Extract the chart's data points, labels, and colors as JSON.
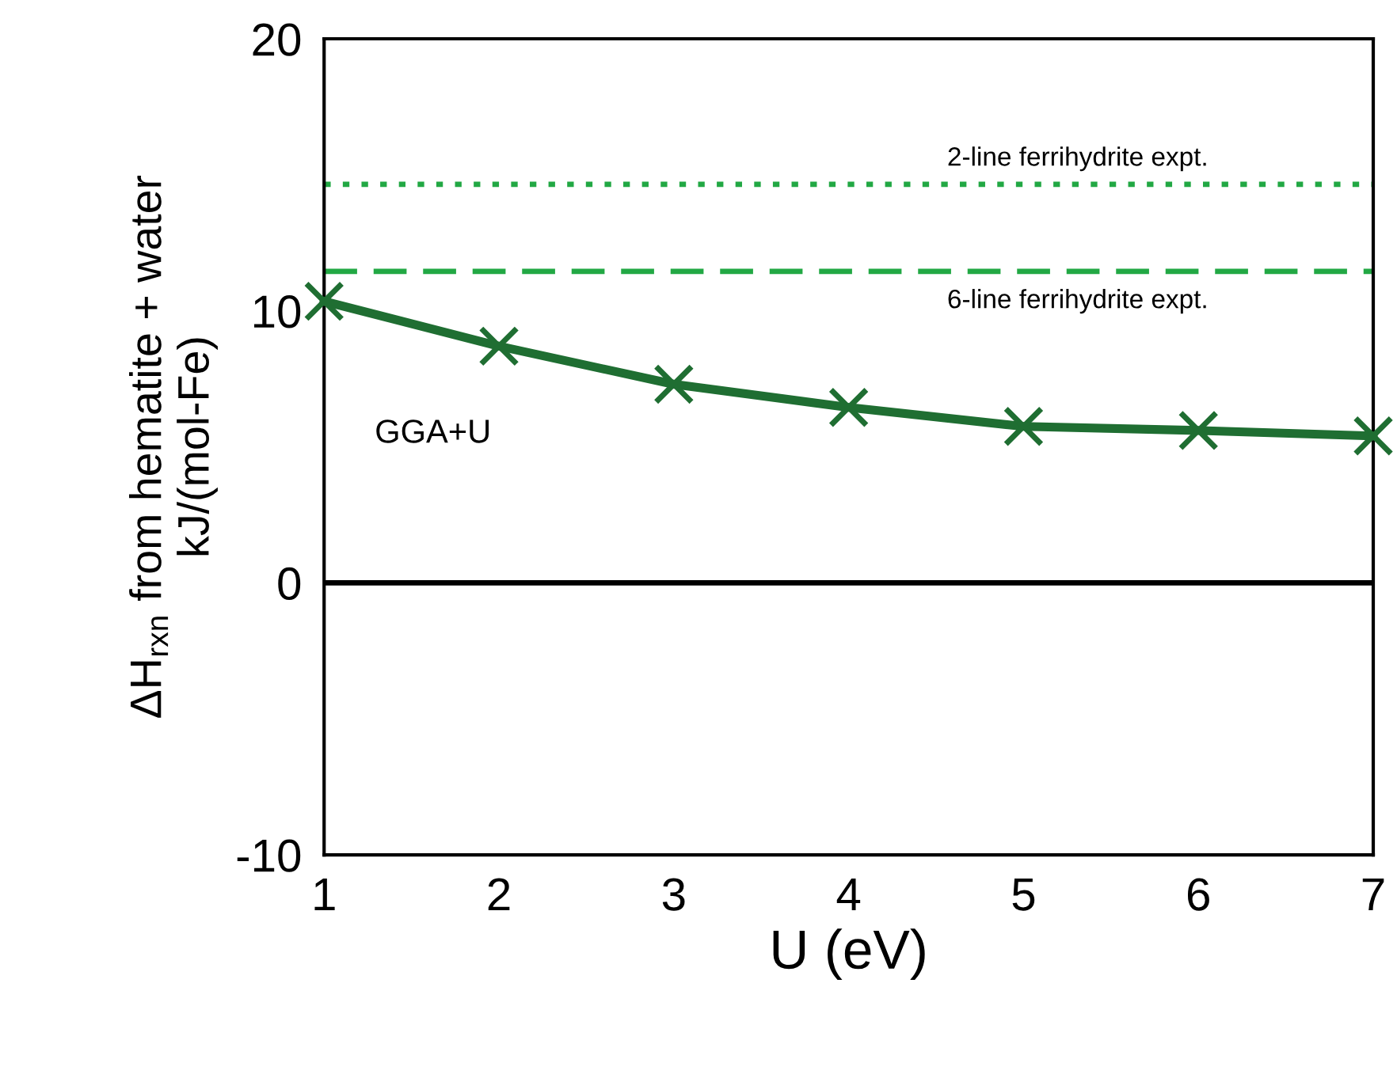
{
  "chart_data": {
    "type": "line",
    "xlabel": "U (eV)",
    "ylabel": "ΔH$_{rxn}$ from hematite + water\nkJ/(mol-Fe)",
    "x": [
      1,
      2,
      3,
      4,
      5,
      6,
      7
    ],
    "series": [
      {
        "name": "GGA+U",
        "color": "#1f6e32",
        "values": [
          10.35,
          8.7,
          7.3,
          6.45,
          5.75,
          5.6,
          5.4
        ],
        "marker": "cross",
        "line_style": "solid"
      }
    ],
    "xlim": [
      1,
      7
    ],
    "xticks": [
      1,
      2,
      3,
      4,
      5,
      6,
      7
    ],
    "ylim": [
      -10,
      20
    ],
    "yticks": [
      -10,
      0,
      10,
      20
    ],
    "ref_lines": [
      {
        "axis": "y",
        "value": 14.65,
        "color": "#22a844",
        "line_style": "dotted",
        "label": "2-line ferrihydrite expt."
      },
      {
        "axis": "y",
        "value": 11.45,
        "color": "#22a844",
        "line_style": "dashed",
        "label": "6-line ferrihydrite expt."
      },
      {
        "axis": "y",
        "value": 0,
        "color": "#000000",
        "line_style": "solid"
      }
    ],
    "grid": false,
    "legend": false
  }
}
